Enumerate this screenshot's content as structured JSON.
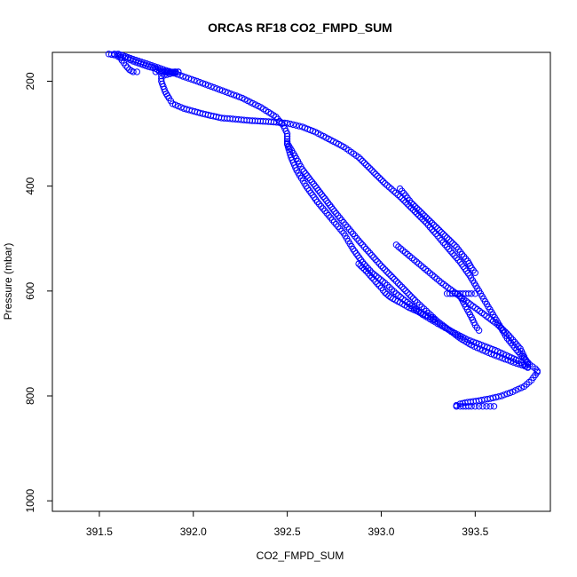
{
  "chart_data": {
    "type": "scatter",
    "title": "ORCAS RF18 CO2_FMPD_SUM",
    "xlabel": "CO2_FMPD_SUM",
    "ylabel": "Pressure (mbar)",
    "xlim": [
      391.25,
      393.9
    ],
    "ylim": [
      1020,
      145
    ],
    "y_reversed": true,
    "grid": false,
    "legend": "none",
    "x_ticks": [
      391.5,
      392.0,
      392.5,
      393.0,
      393.5
    ],
    "x_tick_labels": [
      "391.5",
      "392.0",
      "392.5",
      "393.0",
      "393.5"
    ],
    "y_ticks": [
      200,
      400,
      600,
      800,
      1000
    ],
    "y_tick_labels": [
      "200",
      "400",
      "600",
      "800",
      "1000"
    ],
    "marker_color": "#0000ff",
    "series": [
      {
        "x": [
          391.55,
          391.58,
          391.6,
          391.65,
          391.68,
          391.72,
          391.76,
          391.8,
          391.82,
          391.86,
          391.88,
          391.92,
          391.83,
          391.83,
          391.84,
          391.85,
          391.87,
          391.89,
          391.95,
          392.05,
          392.15,
          392.3,
          392.4,
          392.5,
          392.58,
          392.65,
          392.72,
          392.8,
          392.88,
          392.95,
          393.02,
          393.1,
          393.17,
          393.24,
          393.3,
          393.36,
          393.42,
          393.47,
          393.52,
          393.57,
          393.62,
          393.67,
          393.72,
          393.76,
          393.79,
          393.82,
          393.83
        ],
        "y": [
          148,
          150,
          153,
          157,
          162,
          167,
          172,
          176,
          180,
          182,
          183,
          182,
          190,
          200,
          210,
          220,
          232,
          243,
          252,
          262,
          270,
          275,
          277,
          280,
          287,
          297,
          310,
          325,
          345,
          370,
          395,
          420,
          445,
          470,
          495,
          520,
          545,
          570,
          600,
          630,
          660,
          690,
          712,
          728,
          740,
          748,
          752
        ]
      },
      {
        "x": [
          391.6,
          391.68,
          391.78,
          391.9,
          392.02,
          392.14,
          392.26,
          392.36,
          392.44,
          392.48,
          392.5,
          392.5,
          392.52,
          392.55,
          392.6,
          392.66,
          392.73,
          392.8,
          392.85,
          392.9,
          392.95,
          393.02,
          393.08,
          393.15,
          393.22,
          393.3,
          393.38,
          393.46,
          393.55,
          393.62,
          393.68,
          393.73,
          393.76,
          393.78
        ],
        "y": [
          148,
          158,
          170,
          185,
          200,
          216,
          232,
          250,
          268,
          285,
          300,
          320,
          345,
          370,
          400,
          430,
          460,
          490,
          520,
          545,
          565,
          585,
          605,
          625,
          645,
          662,
          678,
          693,
          705,
          715,
          725,
          733,
          740,
          746
        ]
      },
      {
        "x": [
          392.5,
          392.54,
          392.58,
          392.64,
          392.7,
          392.76,
          392.82,
          392.88,
          392.94,
          393.0,
          393.06,
          393.12,
          393.18,
          393.24,
          393.3,
          393.36,
          393.42,
          393.48,
          393.54,
          393.6,
          393.66,
          393.72,
          393.78
        ],
        "y": [
          318,
          342,
          368,
          396,
          424,
          452,
          478,
          504,
          528,
          552,
          574,
          596,
          618,
          638,
          658,
          674,
          690,
          703,
          713,
          722,
          730,
          738,
          745
        ]
      },
      {
        "x": [
          393.83,
          393.8,
          393.76,
          393.7,
          393.64,
          393.58,
          393.52,
          393.46,
          393.42,
          393.4,
          393.4
        ],
        "y": [
          755,
          770,
          782,
          792,
          800,
          805,
          809,
          812,
          815,
          818,
          820
        ]
      },
      {
        "x": [
          393.08,
          393.14,
          393.2,
          393.26,
          393.32,
          393.38,
          393.44,
          393.5,
          393.56,
          393.62,
          393.68,
          393.74,
          393.78
        ],
        "y": [
          512,
          530,
          548,
          566,
          584,
          600,
          616,
          632,
          648,
          664,
          685,
          710,
          740
        ]
      },
      {
        "x": [
          393.1,
          393.13,
          393.16,
          393.2,
          393.24,
          393.28,
          393.32,
          393.36,
          393.4,
          393.43,
          393.46,
          393.48,
          393.5
        ],
        "y": [
          405,
          418,
          432,
          446,
          460,
          474,
          488,
          502,
          516,
          530,
          543,
          556,
          565
        ]
      },
      {
        "x": [
          392.88,
          392.9,
          392.92,
          392.94,
          392.96,
          392.98,
          393.0,
          393.02,
          393.05,
          393.1,
          393.15,
          393.2,
          393.25,
          393.28,
          393.28
        ],
        "y": [
          548,
          555,
          562,
          570,
          578,
          586,
          594,
          603,
          612,
          622,
          632,
          640,
          648,
          653,
          655
        ]
      },
      {
        "x": [
          393.35,
          393.38,
          393.42,
          393.45,
          393.48,
          393.5
        ],
        "y": [
          605,
          605,
          605,
          605,
          605,
          605
        ]
      },
      {
        "x": [
          393.42,
          393.45,
          393.48,
          393.5,
          393.52
        ],
        "y": [
          610,
          630,
          650,
          665,
          675
        ]
      },
      {
        "x": [
          393.4,
          393.42,
          393.45,
          393.48,
          393.5,
          393.52,
          393.54,
          393.56,
          393.58,
          393.6
        ],
        "y": [
          820,
          820,
          820,
          820,
          820,
          820,
          820,
          820,
          820,
          820
        ]
      },
      {
        "x": [
          391.8,
          391.82,
          391.84,
          391.86,
          391.88,
          391.9,
          391.92,
          391.85,
          391.87
        ],
        "y": [
          182,
          182,
          182,
          182,
          182,
          182,
          182,
          183,
          181
        ]
      },
      {
        "x": [
          391.58,
          391.6,
          391.62,
          391.64,
          391.66,
          391.68,
          391.7
        ],
        "y": [
          148,
          150,
          160,
          170,
          178,
          182,
          182
        ]
      }
    ]
  }
}
